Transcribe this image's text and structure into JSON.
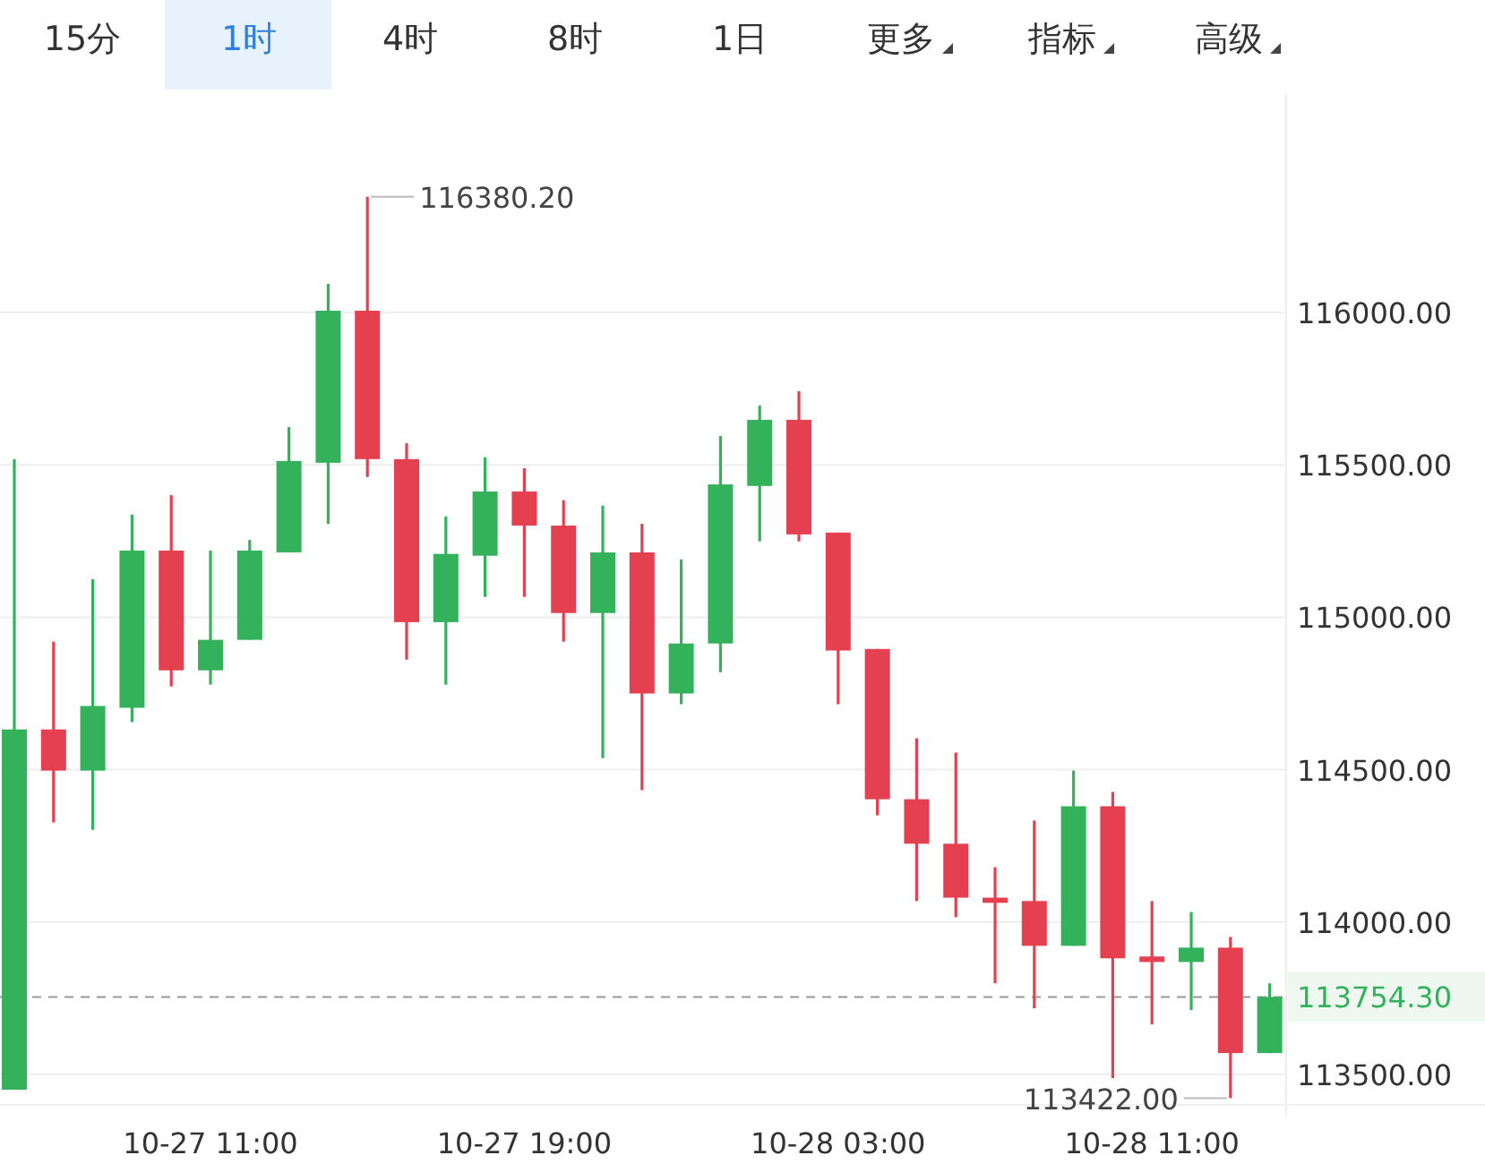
{
  "chart_data": {
    "type": "candlestick",
    "categories": [
      null,
      null,
      null,
      null,
      null,
      "10-27 11:00",
      null,
      null,
      null,
      null,
      null,
      null,
      null,
      "10-27 19:00",
      null,
      null,
      null,
      null,
      null,
      null,
      null,
      "10-28 03:00",
      null,
      null,
      null,
      null,
      null,
      null,
      null,
      "10-28 11:00",
      null,
      null,
      null
    ],
    "ohlc": [
      [
        113450,
        115519,
        113450,
        114632
      ],
      [
        114632,
        114920,
        114327,
        114497
      ],
      [
        114497,
        115125,
        114303,
        114709
      ],
      [
        114703,
        115337,
        114656,
        115219
      ],
      [
        115219,
        115401,
        114773,
        114826
      ],
      [
        114826,
        115219,
        114779,
        114926
      ],
      [
        114926,
        115254,
        114926,
        115219
      ],
      [
        115213,
        115624,
        115213,
        115513
      ],
      [
        115507,
        116094,
        115307,
        116006
      ],
      [
        116006,
        116380.2,
        115460,
        115519
      ],
      [
        115519,
        115571,
        114861,
        114984
      ],
      [
        114984,
        115331,
        114779,
        115208
      ],
      [
        115202,
        115525,
        115067,
        115413
      ],
      [
        115413,
        115489,
        115067,
        115301
      ],
      [
        115301,
        115384,
        114920,
        115014
      ],
      [
        115014,
        115366,
        114538,
        115213
      ],
      [
        115213,
        115307,
        114433,
        114750
      ],
      [
        114750,
        115190,
        114715,
        114914
      ],
      [
        114914,
        115595,
        114820,
        115436
      ],
      [
        115431,
        115695,
        115249,
        115648
      ],
      [
        115648,
        115742,
        115249,
        115272
      ],
      [
        115278,
        115278,
        114715,
        114891
      ],
      [
        114896,
        114896,
        114350,
        114403
      ],
      [
        114403,
        114603,
        114069,
        114257
      ],
      [
        114257,
        114556,
        114016,
        114080
      ],
      [
        114080,
        114180,
        113799,
        114063
      ],
      [
        114069,
        114333,
        113717,
        113922
      ],
      [
        113922,
        114497,
        113922,
        114380
      ],
      [
        114380,
        114427,
        113488,
        113881
      ],
      [
        113887,
        114069,
        113664,
        113869
      ],
      [
        113869,
        114033,
        113711,
        113916
      ],
      [
        113916,
        113951,
        113422,
        113570
      ],
      [
        113570,
        113799,
        113570,
        113754.3
      ]
    ],
    "colors": [
      "#34b25b",
      "#e5404f",
      "#34b25b",
      "#34b25b",
      "#e5404f",
      "#34b25b",
      "#34b25b",
      "#34b25b",
      "#34b25b",
      "#e5404f",
      "#e5404f",
      "#34b25b",
      "#34b25b",
      "#e5404f",
      "#e5404f",
      "#34b25b",
      "#e5404f",
      "#34b25b",
      "#34b25b",
      "#34b25b",
      "#e5404f",
      "#e5404f",
      "#e5404f",
      "#e5404f",
      "#e5404f",
      "#e5404f",
      "#e5404f",
      "#34b25b",
      "#e5404f",
      "#e5404f",
      "#34b25b",
      "#e5404f",
      "#34b25b"
    ],
    "ylim": [
      113400,
      116720
    ],
    "yticks": [
      {
        "value": 113500,
        "label": "113500.00"
      },
      {
        "value": 114000,
        "label": "114000.00"
      },
      {
        "value": 114500,
        "label": "114500.00"
      },
      {
        "value": 115000,
        "label": "115000.00"
      },
      {
        "value": 115500,
        "label": "115500.00"
      },
      {
        "value": 116000,
        "label": "116000.00"
      }
    ],
    "grid": "y",
    "ref_lines": [
      {
        "axis": "y",
        "value": 113754.3,
        "label": "113754.30",
        "line_style": "dashed"
      }
    ],
    "annotations": [
      "15分",
      "1时",
      "4时",
      "8时",
      "1日",
      "更多",
      "指标",
      "高级",
      "116380.20",
      "113422.00"
    ]
  }
}
